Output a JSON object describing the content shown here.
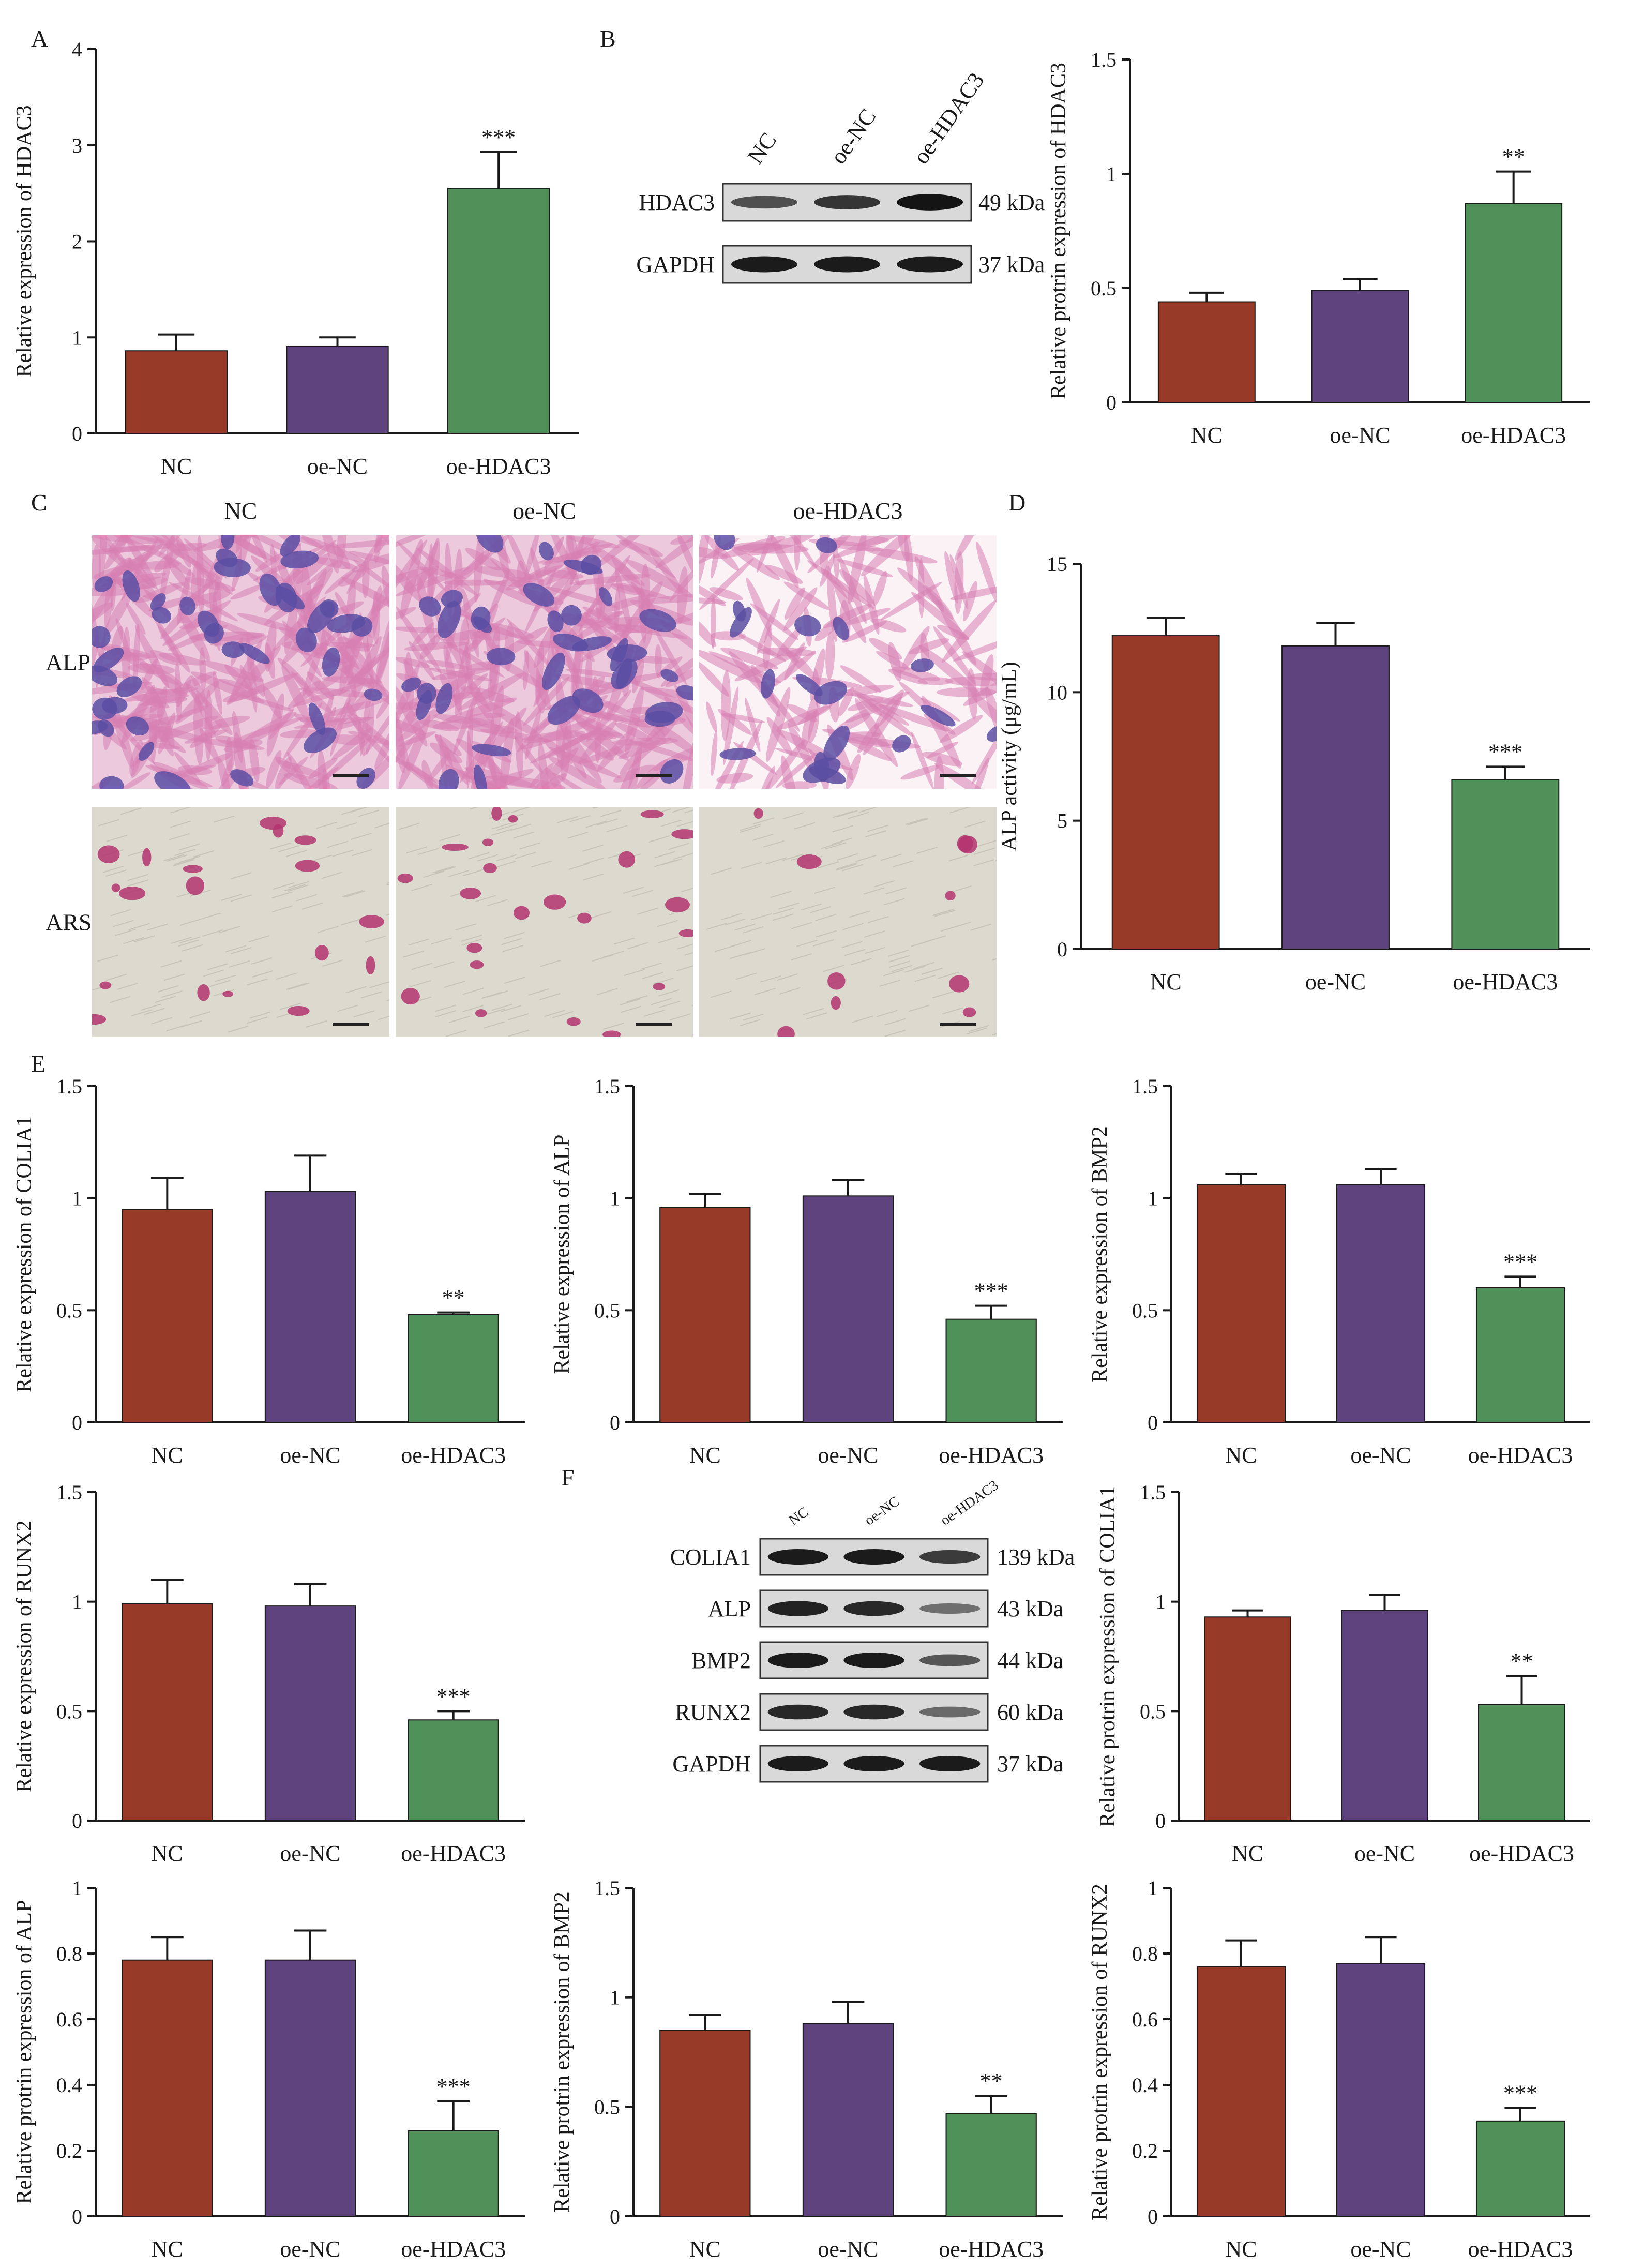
{
  "panels": {
    "A": "A",
    "B": "B",
    "C": "C",
    "D": "D",
    "E": "E",
    "F": "F"
  },
  "colors": {
    "NC": "#973A28",
    "oe-NC": "#5E437F",
    "oe-HDAC3": "#4F9159",
    "axis": "#1a1a1a"
  },
  "western_b": {
    "lanes": [
      "NC",
      "oe-NC",
      "oe-HDAC3"
    ],
    "rows": [
      {
        "protein": "HDAC3",
        "size": "49 kDa",
        "intensity": [
          0.55,
          0.75,
          1.0
        ]
      },
      {
        "protein": "GAPDH",
        "size": "37 kDa",
        "intensity": [
          0.95,
          0.95,
          0.95
        ]
      }
    ]
  },
  "western_f": {
    "lanes": [
      "NC",
      "oe-NC",
      "oe-HDAC3"
    ],
    "rows": [
      {
        "protein": "COLIA1",
        "size": "139 kDa",
        "intensity": [
          0.95,
          0.95,
          0.7
        ]
      },
      {
        "protein": "ALP",
        "size": "43 kDa",
        "intensity": [
          0.9,
          0.85,
          0.3
        ]
      },
      {
        "protein": "BMP2",
        "size": "44 kDa",
        "intensity": [
          0.95,
          0.95,
          0.5
        ]
      },
      {
        "protein": "RUNX2",
        "size": "60 kDa",
        "intensity": [
          0.85,
          0.85,
          0.35
        ]
      },
      {
        "protein": "GAPDH",
        "size": "37 kDa",
        "intensity": [
          0.95,
          0.95,
          0.95
        ]
      }
    ]
  },
  "staining_c": {
    "columns": [
      "NC",
      "oe-NC",
      "oe-HDAC3"
    ],
    "rows": [
      "ALP",
      "ARS"
    ]
  },
  "chart_data": [
    {
      "id": "A-mrna-hdac3",
      "type": "bar",
      "categories": [
        "NC",
        "oe-NC",
        "oe-HDAC3"
      ],
      "values": [
        0.86,
        0.91,
        2.55
      ],
      "errors": [
        0.17,
        0.09,
        0.38
      ],
      "significance": [
        "",
        "",
        "***"
      ],
      "ylabel": "Relative expression of HDAC3",
      "ylim": [
        0,
        4
      ],
      "yticks": [
        0,
        1,
        2,
        3,
        4
      ]
    },
    {
      "id": "B-protein-hdac3",
      "type": "bar",
      "categories": [
        "NC",
        "oe-NC",
        "oe-HDAC3"
      ],
      "values": [
        0.44,
        0.49,
        0.87
      ],
      "errors": [
        0.04,
        0.05,
        0.14
      ],
      "significance": [
        "",
        "",
        "**"
      ],
      "ylabel": "Relative protrin expression of HDAC3",
      "ylim": [
        0,
        1.5
      ],
      "yticks": [
        0,
        0.5,
        1.0,
        1.5
      ]
    },
    {
      "id": "D-alp-activity",
      "type": "bar",
      "categories": [
        "NC",
        "oe-NC",
        "oe-HDAC3"
      ],
      "values": [
        12.2,
        11.8,
        6.6
      ],
      "errors": [
        0.7,
        0.9,
        0.5
      ],
      "significance": [
        "",
        "",
        "***"
      ],
      "ylabel": "ALP activity (μg/mL)",
      "ylim": [
        0,
        15
      ],
      "yticks": [
        0,
        5,
        10,
        15
      ]
    },
    {
      "id": "E-mrna-colia1",
      "type": "bar",
      "categories": [
        "NC",
        "oe-NC",
        "oe-HDAC3"
      ],
      "values": [
        0.95,
        1.03,
        0.48
      ],
      "errors": [
        0.14,
        0.16,
        0.01
      ],
      "significance": [
        "",
        "",
        "**"
      ],
      "ylabel": "Relative expression of COLIA1",
      "ylim": [
        0,
        1.5
      ],
      "yticks": [
        0,
        0.5,
        1.0,
        1.5
      ]
    },
    {
      "id": "E-mrna-alp",
      "type": "bar",
      "categories": [
        "NC",
        "oe-NC",
        "oe-HDAC3"
      ],
      "values": [
        0.96,
        1.01,
        0.46
      ],
      "errors": [
        0.06,
        0.07,
        0.06
      ],
      "significance": [
        "",
        "",
        "***"
      ],
      "ylabel": "Relative expression of ALP",
      "ylim": [
        0,
        1.5
      ],
      "yticks": [
        0,
        0.5,
        1.0,
        1.5
      ]
    },
    {
      "id": "E-mrna-bmp2",
      "type": "bar",
      "categories": [
        "NC",
        "oe-NC",
        "oe-HDAC3"
      ],
      "values": [
        1.06,
        1.06,
        0.6
      ],
      "errors": [
        0.05,
        0.07,
        0.05
      ],
      "significance": [
        "",
        "",
        "***"
      ],
      "ylabel": "Relative expression of BMP2",
      "ylim": [
        0,
        1.5
      ],
      "yticks": [
        0,
        0.5,
        1.0,
        1.5
      ]
    },
    {
      "id": "E-mrna-runx2",
      "type": "bar",
      "categories": [
        "NC",
        "oe-NC",
        "oe-HDAC3"
      ],
      "values": [
        0.99,
        0.98,
        0.46
      ],
      "errors": [
        0.11,
        0.1,
        0.04
      ],
      "significance": [
        "",
        "",
        "***"
      ],
      "ylabel": "Relative expression of RUNX2",
      "ylim": [
        0,
        1.5
      ],
      "yticks": [
        0,
        0.5,
        1.0,
        1.5
      ]
    },
    {
      "id": "F-protein-colia1",
      "type": "bar",
      "categories": [
        "NC",
        "oe-NC",
        "oe-HDAC3"
      ],
      "values": [
        0.93,
        0.96,
        0.53
      ],
      "errors": [
        0.03,
        0.07,
        0.13
      ],
      "significance": [
        "",
        "",
        "**"
      ],
      "ylabel": "Relative protrin expression of COLIA1",
      "ylim": [
        0,
        1.5
      ],
      "yticks": [
        0,
        0.5,
        1.0,
        1.5
      ]
    },
    {
      "id": "F-protein-alp",
      "type": "bar",
      "categories": [
        "NC",
        "oe-NC",
        "oe-HDAC3"
      ],
      "values": [
        0.78,
        0.78,
        0.26
      ],
      "errors": [
        0.07,
        0.09,
        0.09
      ],
      "significance": [
        "",
        "",
        "***"
      ],
      "ylabel": "Relative protrin expression of ALP",
      "ylim": [
        0,
        1.0
      ],
      "yticks": [
        0,
        0.2,
        0.4,
        0.6,
        0.8,
        1.0
      ]
    },
    {
      "id": "F-protein-bmp2",
      "type": "bar",
      "categories": [
        "NC",
        "oe-NC",
        "oe-HDAC3"
      ],
      "values": [
        0.85,
        0.88,
        0.47
      ],
      "errors": [
        0.07,
        0.1,
        0.08
      ],
      "significance": [
        "",
        "",
        "**"
      ],
      "ylabel": "Relative protrin expression of BMP2",
      "ylim": [
        0,
        1.5
      ],
      "yticks": [
        0,
        0.5,
        1.0,
        1.5
      ]
    },
    {
      "id": "F-protein-runx2",
      "type": "bar",
      "categories": [
        "NC",
        "oe-NC",
        "oe-HDAC3"
      ],
      "values": [
        0.76,
        0.77,
        0.29
      ],
      "errors": [
        0.08,
        0.08,
        0.04
      ],
      "significance": [
        "",
        "",
        "***"
      ],
      "ylabel": "Relative protrin expression of RUNX2",
      "ylim": [
        0,
        1.0
      ],
      "yticks": [
        0,
        0.2,
        0.4,
        0.6,
        0.8,
        1.0
      ]
    }
  ]
}
